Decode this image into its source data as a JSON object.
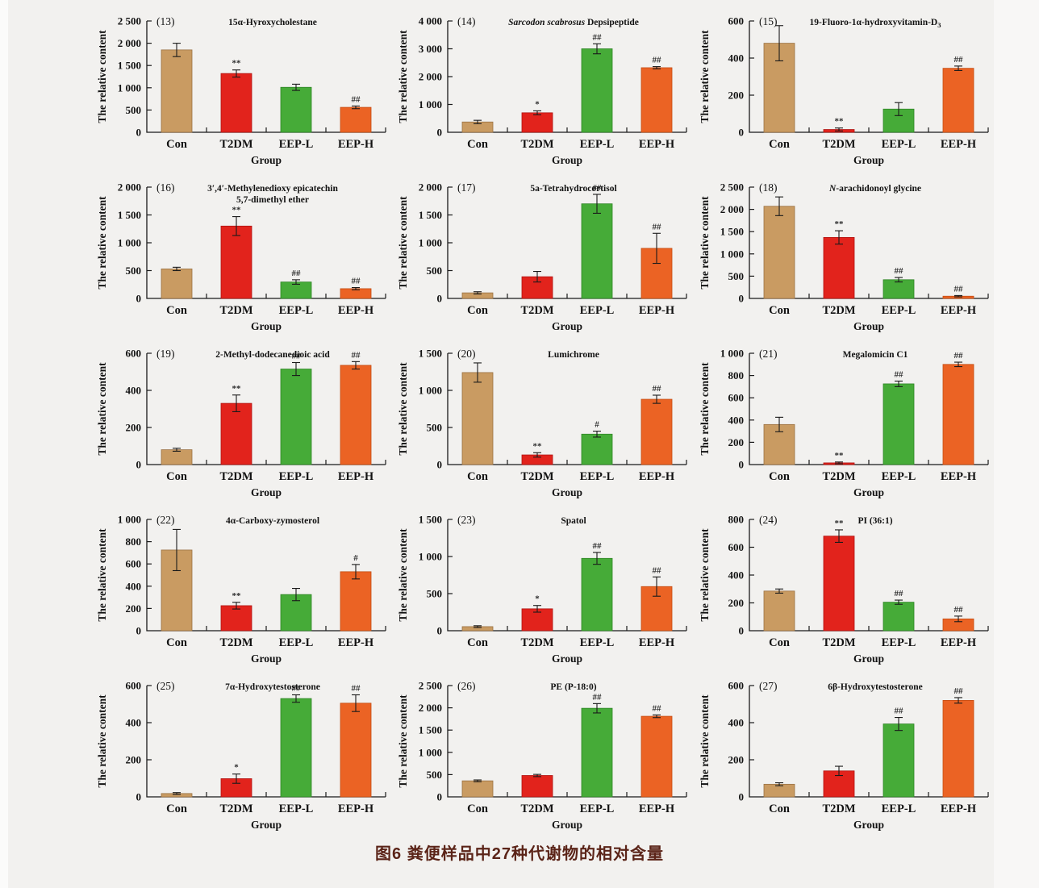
{
  "caption": "图6  粪便样品中27种代谢物的相对含量",
  "caption_color": "#5b2418",
  "colors": {
    "bars": [
      "#c99b62",
      "#e2231c",
      "#46ab38",
      "#eb6324"
    ],
    "bar_strokes": [
      "#9a7142",
      "#b01311",
      "#2f8526",
      "#c44c12"
    ],
    "axis": "#1a1a1a",
    "background": "#f2f1ef"
  },
  "groups": [
    "Con",
    "T2DM",
    "EEP-L",
    "EEP-H"
  ],
  "ylabel": "The relative content",
  "xlabel": "Group",
  "chart_data": [
    {
      "type": "bar",
      "number": "(13)",
      "title": [
        {
          "t": "15α-Hyroxycholestane"
        }
      ],
      "ymax": 2500,
      "ystep": 500,
      "values": [
        1850,
        1320,
        1010,
        560
      ],
      "errors": [
        150,
        80,
        70,
        30
      ],
      "sig": [
        "",
        "**",
        "",
        "##"
      ]
    },
    {
      "type": "bar",
      "number": "(14)",
      "title": [
        {
          "t": "Sarcodon scabrosus",
          "i": 1
        },
        {
          "t": " Depsipeptide"
        }
      ],
      "ymax": 4000,
      "ystep": 1000,
      "values": [
        370,
        700,
        3000,
        2320
      ],
      "errors": [
        60,
        70,
        180,
        40
      ],
      "sig": [
        "",
        "*",
        "##",
        "##"
      ]
    },
    {
      "type": "bar",
      "number": "(15)",
      "title": [
        {
          "t": "19-Fluoro-1α-hydroxyvitamin-D"
        },
        {
          "t": "3",
          "sub": 1
        }
      ],
      "ymax": 600,
      "ystep": 200,
      "values": [
        480,
        15,
        125,
        345
      ],
      "errors": [
        95,
        8,
        35,
        12
      ],
      "sig": [
        "",
        "**",
        "",
        "##"
      ]
    },
    {
      "type": "bar",
      "number": "(16)",
      "title": [
        {
          "t": "3′,4′-Methylenedioxy epicatechin"
        }
      ],
      "title2": "5,7-dimethyl ether",
      "ymax": 2000,
      "ystep": 500,
      "values": [
        530,
        1300,
        295,
        175
      ],
      "errors": [
        30,
        170,
        40,
        20
      ],
      "sig": [
        "",
        "**",
        "##",
        "##"
      ]
    },
    {
      "type": "bar",
      "number": "(17)",
      "title": [
        {
          "t": "5a-Tetrahydrocortisol"
        }
      ],
      "ymax": 2000,
      "ystep": 500,
      "values": [
        100,
        390,
        1700,
        900
      ],
      "errors": [
        20,
        95,
        170,
        270
      ],
      "sig": [
        "",
        "",
        "##",
        "##"
      ]
    },
    {
      "type": "bar",
      "number": "(18)",
      "title": [
        {
          "t": "N",
          "i": 1
        },
        {
          "t": "-arachidonoyl glycine"
        }
      ],
      "ymax": 2500,
      "ystep": 500,
      "values": [
        2070,
        1370,
        420,
        50
      ],
      "errors": [
        210,
        150,
        50,
        15
      ],
      "sig": [
        "",
        "**",
        "##",
        "##"
      ]
    },
    {
      "type": "bar",
      "number": "(19)",
      "title": [
        {
          "t": "2-Methyl-dodecanedioic acid"
        }
      ],
      "ymax": 600,
      "ystep": 200,
      "values": [
        80,
        330,
        515,
        535
      ],
      "errors": [
        8,
        45,
        35,
        20
      ],
      "sig": [
        "",
        "**",
        "##",
        "##"
      ]
    },
    {
      "type": "bar",
      "number": "(20)",
      "title": [
        {
          "t": "Lumichrome"
        }
      ],
      "ymax": 1500,
      "ystep": 500,
      "values": [
        1240,
        130,
        410,
        880
      ],
      "errors": [
        130,
        30,
        40,
        55
      ],
      "sig": [
        "",
        "**",
        "#",
        "##"
      ]
    },
    {
      "type": "bar",
      "number": "(21)",
      "title": [
        {
          "t": "Megalomicin C1"
        }
      ],
      "ymax": 1000,
      "ystep": 200,
      "values": [
        360,
        15,
        725,
        900
      ],
      "errors": [
        65,
        8,
        25,
        20
      ],
      "sig": [
        "",
        "**",
        "##",
        "##"
      ]
    },
    {
      "type": "bar",
      "number": "(22)",
      "title": [
        {
          "t": "4α-Carboxy-zymosterol"
        }
      ],
      "ymax": 1000,
      "ystep": 200,
      "values": [
        725,
        225,
        325,
        530
      ],
      "errors": [
        185,
        30,
        55,
        65
      ],
      "sig": [
        "",
        "**",
        "",
        "#"
      ]
    },
    {
      "type": "bar",
      "number": "(23)",
      "title": [
        {
          "t": "Spatol"
        }
      ],
      "ymax": 1500,
      "ystep": 500,
      "values": [
        55,
        295,
        975,
        595
      ],
      "errors": [
        12,
        45,
        80,
        130
      ],
      "sig": [
        "",
        "*",
        "##",
        "##"
      ]
    },
    {
      "type": "bar",
      "number": "(24)",
      "title": [
        {
          "t": "PI (36:1)"
        }
      ],
      "ymax": 800,
      "ystep": 200,
      "values": [
        285,
        680,
        205,
        85
      ],
      "errors": [
        15,
        45,
        15,
        20
      ],
      "sig": [
        "",
        "**",
        "##",
        "##"
      ]
    },
    {
      "type": "bar",
      "number": "(25)",
      "title": [
        {
          "t": "7α-Hydroxytestosterone"
        }
      ],
      "ymax": 600,
      "ystep": 200,
      "values": [
        18,
        98,
        530,
        505
      ],
      "errors": [
        5,
        25,
        20,
        45
      ],
      "sig": [
        "",
        "*",
        "##",
        "##"
      ]
    },
    {
      "type": "bar",
      "number": "(26)",
      "title": [
        {
          "t": "PE (P-18:0)"
        }
      ],
      "ymax": 2500,
      "ystep": 500,
      "values": [
        360,
        480,
        1990,
        1810
      ],
      "errors": [
        20,
        25,
        105,
        30
      ],
      "sig": [
        "",
        "",
        "##",
        "##"
      ]
    },
    {
      "type": "bar",
      "number": "(27)",
      "title": [
        {
          "t": "6β-Hydroxytestosterone"
        }
      ],
      "ymax": 600,
      "ystep": 200,
      "values": [
        68,
        140,
        393,
        520
      ],
      "errors": [
        8,
        25,
        35,
        15
      ],
      "sig": [
        "",
        "",
        "##",
        "##"
      ]
    }
  ]
}
